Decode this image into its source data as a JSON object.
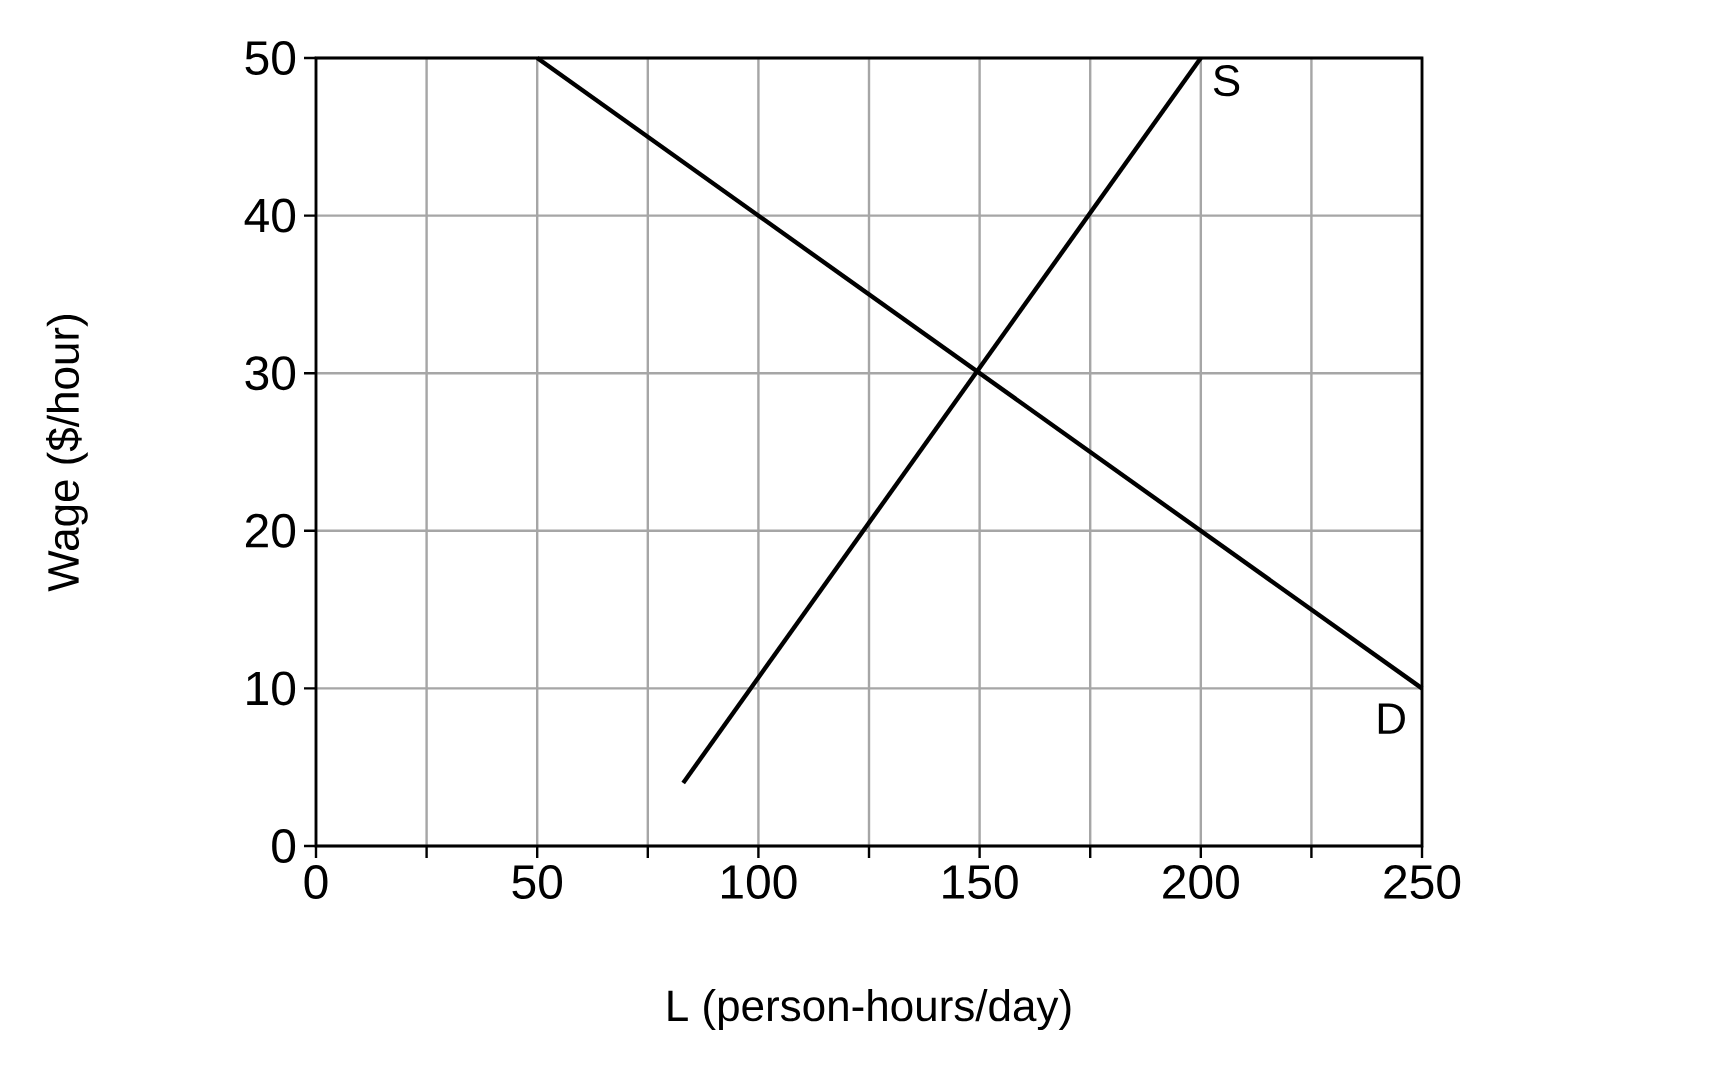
{
  "chart_data": {
    "type": "line",
    "xlabel": "L (person-hours/day)",
    "ylabel": "Wage ($/hour)",
    "series": [
      {
        "name": "S",
        "color": "#000000",
        "x": [
          83,
          200
        ],
        "values": [
          4,
          50
        ]
      },
      {
        "name": "D",
        "color": "#000000",
        "x": [
          50,
          250
        ],
        "values": [
          50,
          10
        ]
      }
    ],
    "xlim": [
      0,
      250
    ],
    "ylim": [
      0,
      50
    ],
    "xticks": [
      0,
      {
        "value": 25,
        "label": null
      },
      50,
      {
        "value": 75,
        "label": null
      },
      100,
      {
        "value": 125,
        "label": null
      },
      150,
      {
        "value": 175,
        "label": null
      },
      200,
      {
        "value": 225,
        "label": null
      },
      250
    ],
    "yticks": [
      0,
      10,
      20,
      30,
      40,
      50
    ],
    "grid": true,
    "marker": "none",
    "line_style": "solid"
  }
}
